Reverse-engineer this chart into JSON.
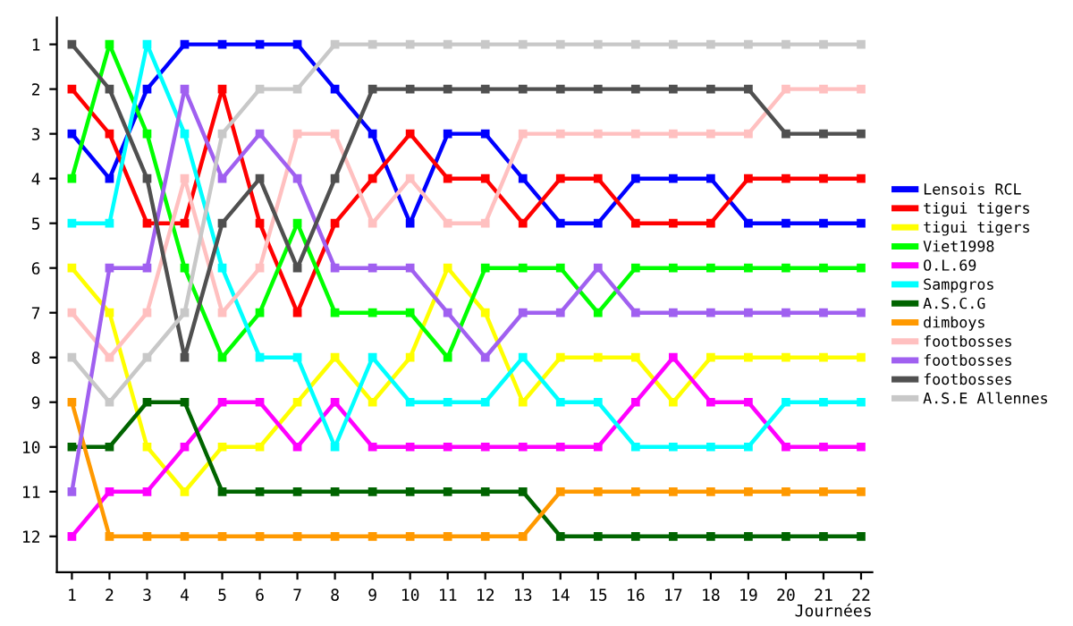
{
  "chart_data": {
    "type": "line",
    "xlabel": "Journées",
    "x": [
      1,
      2,
      3,
      4,
      5,
      6,
      7,
      8,
      9,
      10,
      11,
      12,
      13,
      14,
      15,
      16,
      17,
      18,
      19,
      20,
      21,
      22
    ],
    "xlim": [
      0.6,
      22.3
    ],
    "xticks": [
      1,
      2,
      3,
      4,
      5,
      6,
      7,
      8,
      9,
      10,
      11,
      12,
      13,
      14,
      15,
      16,
      17,
      18,
      19,
      20,
      21,
      22
    ],
    "ylim": [
      12.8,
      0.4
    ],
    "yticks": [
      1,
      2,
      3,
      4,
      5,
      6,
      7,
      8,
      9,
      10,
      11,
      12
    ],
    "marker": "square",
    "line_style": "solid",
    "grid": false,
    "legend": "right",
    "series": [
      {
        "name": "Lensois RCL",
        "color": "#0000ff",
        "values": [
          3,
          4,
          2,
          1,
          1,
          1,
          1,
          2,
          3,
          5,
          3,
          3,
          4,
          5,
          5,
          4,
          4,
          4,
          5,
          5,
          5,
          5
        ]
      },
      {
        "name": "tigui tigers",
        "color": "#ff0000",
        "values": [
          2,
          3,
          5,
          5,
          2,
          5,
          7,
          5,
          4,
          3,
          4,
          4,
          5,
          4,
          4,
          5,
          5,
          5,
          4,
          4,
          4,
          4
        ]
      },
      {
        "name": "tigui tigers",
        "color": "#ffff00",
        "values": [
          6,
          7,
          10,
          11,
          10,
          10,
          9,
          8,
          9,
          8,
          6,
          7,
          9,
          8,
          8,
          8,
          9,
          8,
          8,
          8,
          8,
          8
        ]
      },
      {
        "name": "Viet1998",
        "color": "#00ff00",
        "values": [
          4,
          1,
          3,
          6,
          8,
          7,
          5,
          7,
          7,
          7,
          8,
          6,
          6,
          6,
          7,
          6,
          6,
          6,
          6,
          6,
          6,
          6
        ]
      },
      {
        "name": "O.L.69",
        "color": "#ff00ff",
        "values": [
          12,
          11,
          11,
          10,
          9,
          9,
          10,
          9,
          10,
          10,
          10,
          10,
          10,
          10,
          10,
          9,
          8,
          9,
          9,
          10,
          10,
          10
        ]
      },
      {
        "name": "Sampgros",
        "color": "#00ffff",
        "values": [
          5,
          5,
          1,
          3,
          6,
          8,
          8,
          10,
          8,
          9,
          9,
          9,
          8,
          9,
          9,
          10,
          10,
          10,
          10,
          9,
          9,
          9
        ]
      },
      {
        "name": "A.S.C.G",
        "color": "#006400",
        "values": [
          10,
          10,
          9,
          9,
          11,
          11,
          11,
          11,
          11,
          11,
          11,
          11,
          11,
          12,
          12,
          12,
          12,
          12,
          12,
          12,
          12,
          12
        ]
      },
      {
        "name": "dimboys",
        "color": "#ff9900",
        "values": [
          9,
          12,
          12,
          12,
          12,
          12,
          12,
          12,
          12,
          12,
          12,
          12,
          12,
          11,
          11,
          11,
          11,
          11,
          11,
          11,
          11,
          11
        ]
      },
      {
        "name": "footbosses",
        "color": "#ffc0c0",
        "values": [
          7,
          8,
          7,
          4,
          7,
          6,
          3,
          3,
          5,
          4,
          5,
          5,
          3,
          3,
          3,
          3,
          3,
          3,
          3,
          2,
          2,
          2
        ]
      },
      {
        "name": "footbosses",
        "color": "#a060f0",
        "values": [
          11,
          6,
          6,
          2,
          4,
          3,
          4,
          6,
          6,
          6,
          7,
          8,
          7,
          7,
          6,
          7,
          7,
          7,
          7,
          7,
          7,
          7
        ]
      },
      {
        "name": "footbosses",
        "color": "#505050",
        "values": [
          1,
          2,
          4,
          8,
          5,
          4,
          6,
          4,
          2,
          2,
          2,
          2,
          2,
          2,
          2,
          2,
          2,
          2,
          2,
          3,
          3,
          3
        ]
      },
      {
        "name": "A.S.E Allennes",
        "color": "#c8c8c8",
        "values": [
          8,
          9,
          8,
          7,
          3,
          2,
          2,
          1,
          1,
          1,
          1,
          1,
          1,
          1,
          1,
          1,
          1,
          1,
          1,
          1,
          1,
          1
        ]
      }
    ]
  }
}
